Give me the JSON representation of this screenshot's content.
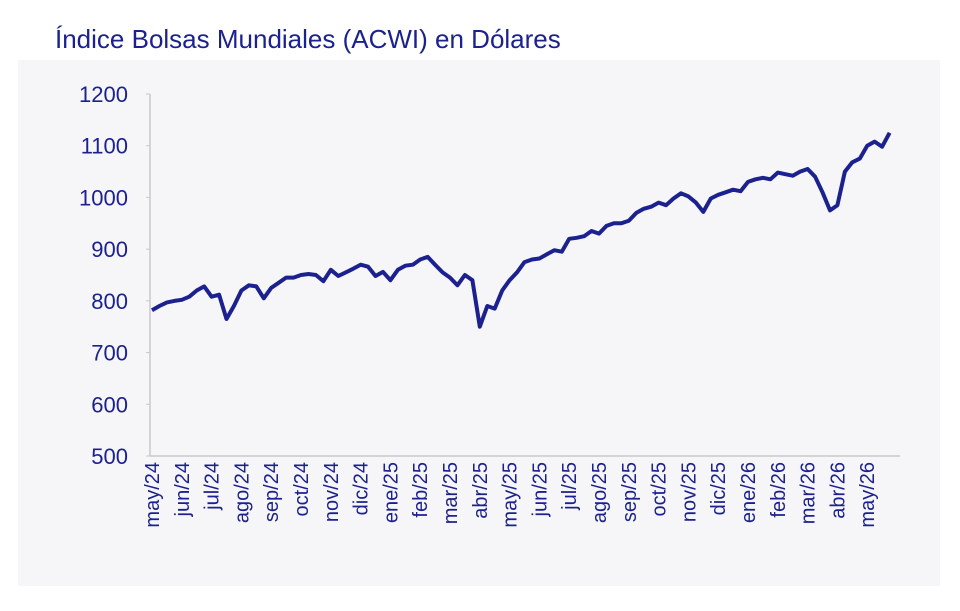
{
  "chart_data": {
    "type": "line",
    "title": "Índice Bolsas Mundiales (ACWI) en Dólares",
    "categories": [
      "may/24",
      null,
      null,
      null,
      "jun/24",
      null,
      null,
      null,
      "jul/24",
      null,
      null,
      null,
      "ago/24",
      null,
      null,
      null,
      "sep/24",
      null,
      null,
      null,
      "oct/24",
      null,
      null,
      null,
      "nov/24",
      null,
      null,
      null,
      "dic/24",
      null,
      null,
      null,
      "ene/25",
      null,
      null,
      null,
      "feb/25",
      null,
      null,
      null,
      "mar/25",
      null,
      null,
      null,
      "abr/25",
      null,
      null,
      null,
      "may/25",
      null,
      null,
      null,
      "jun/25",
      null,
      null,
      null,
      "jul/25",
      null,
      null,
      null,
      "ago/25",
      null,
      null,
      null,
      "sep/25",
      null,
      null,
      null,
      "oct/25",
      null,
      null,
      null,
      "nov/25",
      null,
      null,
      null,
      "dic/25",
      null,
      null,
      null,
      "ene/26",
      null,
      null,
      null,
      "feb/26",
      null,
      null,
      null,
      "mar/26",
      null,
      null,
      null,
      "abr/26",
      null,
      null,
      null,
      "may/26",
      null,
      null,
      null
    ],
    "series": [
      {
        "color": "#1c2190",
        "values": [
          782,
          790,
          797,
          800,
          802,
          808,
          820,
          828,
          808,
          812,
          765,
          790,
          820,
          830,
          828,
          805,
          825,
          835,
          845,
          845,
          850,
          852,
          850,
          838,
          860,
          848,
          855,
          862,
          870,
          866,
          848,
          856,
          840,
          860,
          868,
          870,
          880,
          885,
          870,
          855,
          845,
          830,
          850,
          840,
          750,
          790,
          785,
          820,
          840,
          855,
          875,
          880,
          882,
          890,
          898,
          895,
          920,
          922,
          925,
          935,
          930,
          945,
          950,
          950,
          955,
          970,
          978,
          982,
          990,
          985,
          998,
          1008,
          1002,
          990,
          972,
          998,
          1005,
          1010,
          1015,
          1012,
          1030,
          1035,
          1038,
          1035,
          1048,
          1045,
          1042,
          1050,
          1055,
          1040,
          1010,
          975,
          985,
          1050,
          1068,
          1075,
          1100,
          1108,
          1098,
          1125
        ]
      }
    ],
    "ylim": [
      500,
      1200
    ],
    "yticks": [
      500,
      600,
      700,
      800,
      900,
      1000,
      1100,
      1200
    ],
    "grid": false
  }
}
